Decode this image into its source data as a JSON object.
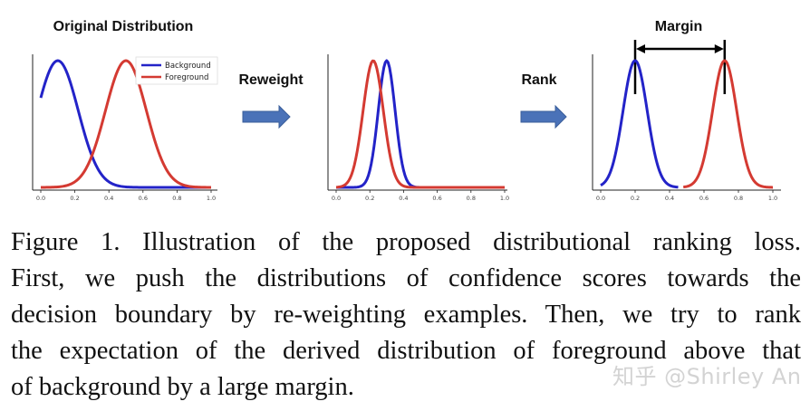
{
  "figure": {
    "panel1_title": "Original Distribution",
    "arrow1_label": "Reweight",
    "arrow2_label": "Rank",
    "margin_label": "Margin",
    "arrow_color": "#4a72b8",
    "blue": "#2323c8",
    "red": "#d43a32"
  },
  "chart_data": [
    {
      "type": "line",
      "title": "Original Distribution",
      "legend": "top-right",
      "x_ticks": [
        "0.0",
        "0.2",
        "0.4",
        "0.6",
        "0.8",
        "1.0"
      ],
      "xlim": [
        0,
        1
      ],
      "series": [
        {
          "name": "Background",
          "color": "#2323c8",
          "mean": 0.1,
          "sd": 0.12,
          "x_range": [
            0.0,
            1.0
          ]
        },
        {
          "name": "Foreground",
          "color": "#d43a32",
          "mean": 0.5,
          "sd": 0.12,
          "x_range": [
            0.0,
            1.0
          ]
        }
      ]
    },
    {
      "type": "line",
      "x_ticks": [
        "0.0",
        "0.2",
        "0.4",
        "0.6",
        "0.8",
        "1.0"
      ],
      "xlim": [
        0,
        1
      ],
      "series": [
        {
          "color": "#2323c8",
          "mean": 0.3,
          "sd": 0.05,
          "x_range": [
            0.0,
            1.0
          ]
        },
        {
          "color": "#d43a32",
          "mean": 0.22,
          "sd": 0.06,
          "x_range": [
            0.0,
            1.0
          ]
        }
      ]
    },
    {
      "type": "line",
      "x_ticks": [
        "0.0",
        "0.2",
        "0.4",
        "0.6",
        "0.8",
        "1.0"
      ],
      "xlim": [
        0,
        1
      ],
      "margin_markers": [
        0.2,
        0.72
      ],
      "series": [
        {
          "color": "#2323c8",
          "mean": 0.2,
          "sd": 0.07,
          "x_range": [
            0.0,
            0.45
          ]
        },
        {
          "color": "#d43a32",
          "mean": 0.72,
          "sd": 0.07,
          "x_range": [
            0.48,
            1.0
          ]
        }
      ]
    }
  ],
  "caption": {
    "line1": "Figure 1. Illustration of the proposed distributional ranking loss.",
    "line2": "First, we push the distributions of confidence scores towards the",
    "line3": "decision boundary by re-weighting examples. Then, we try to rank",
    "line4": "the expectation of the derived distribution of foreground above that",
    "line5": "of background by a large margin."
  },
  "watermark": "知乎 @Shirley An"
}
